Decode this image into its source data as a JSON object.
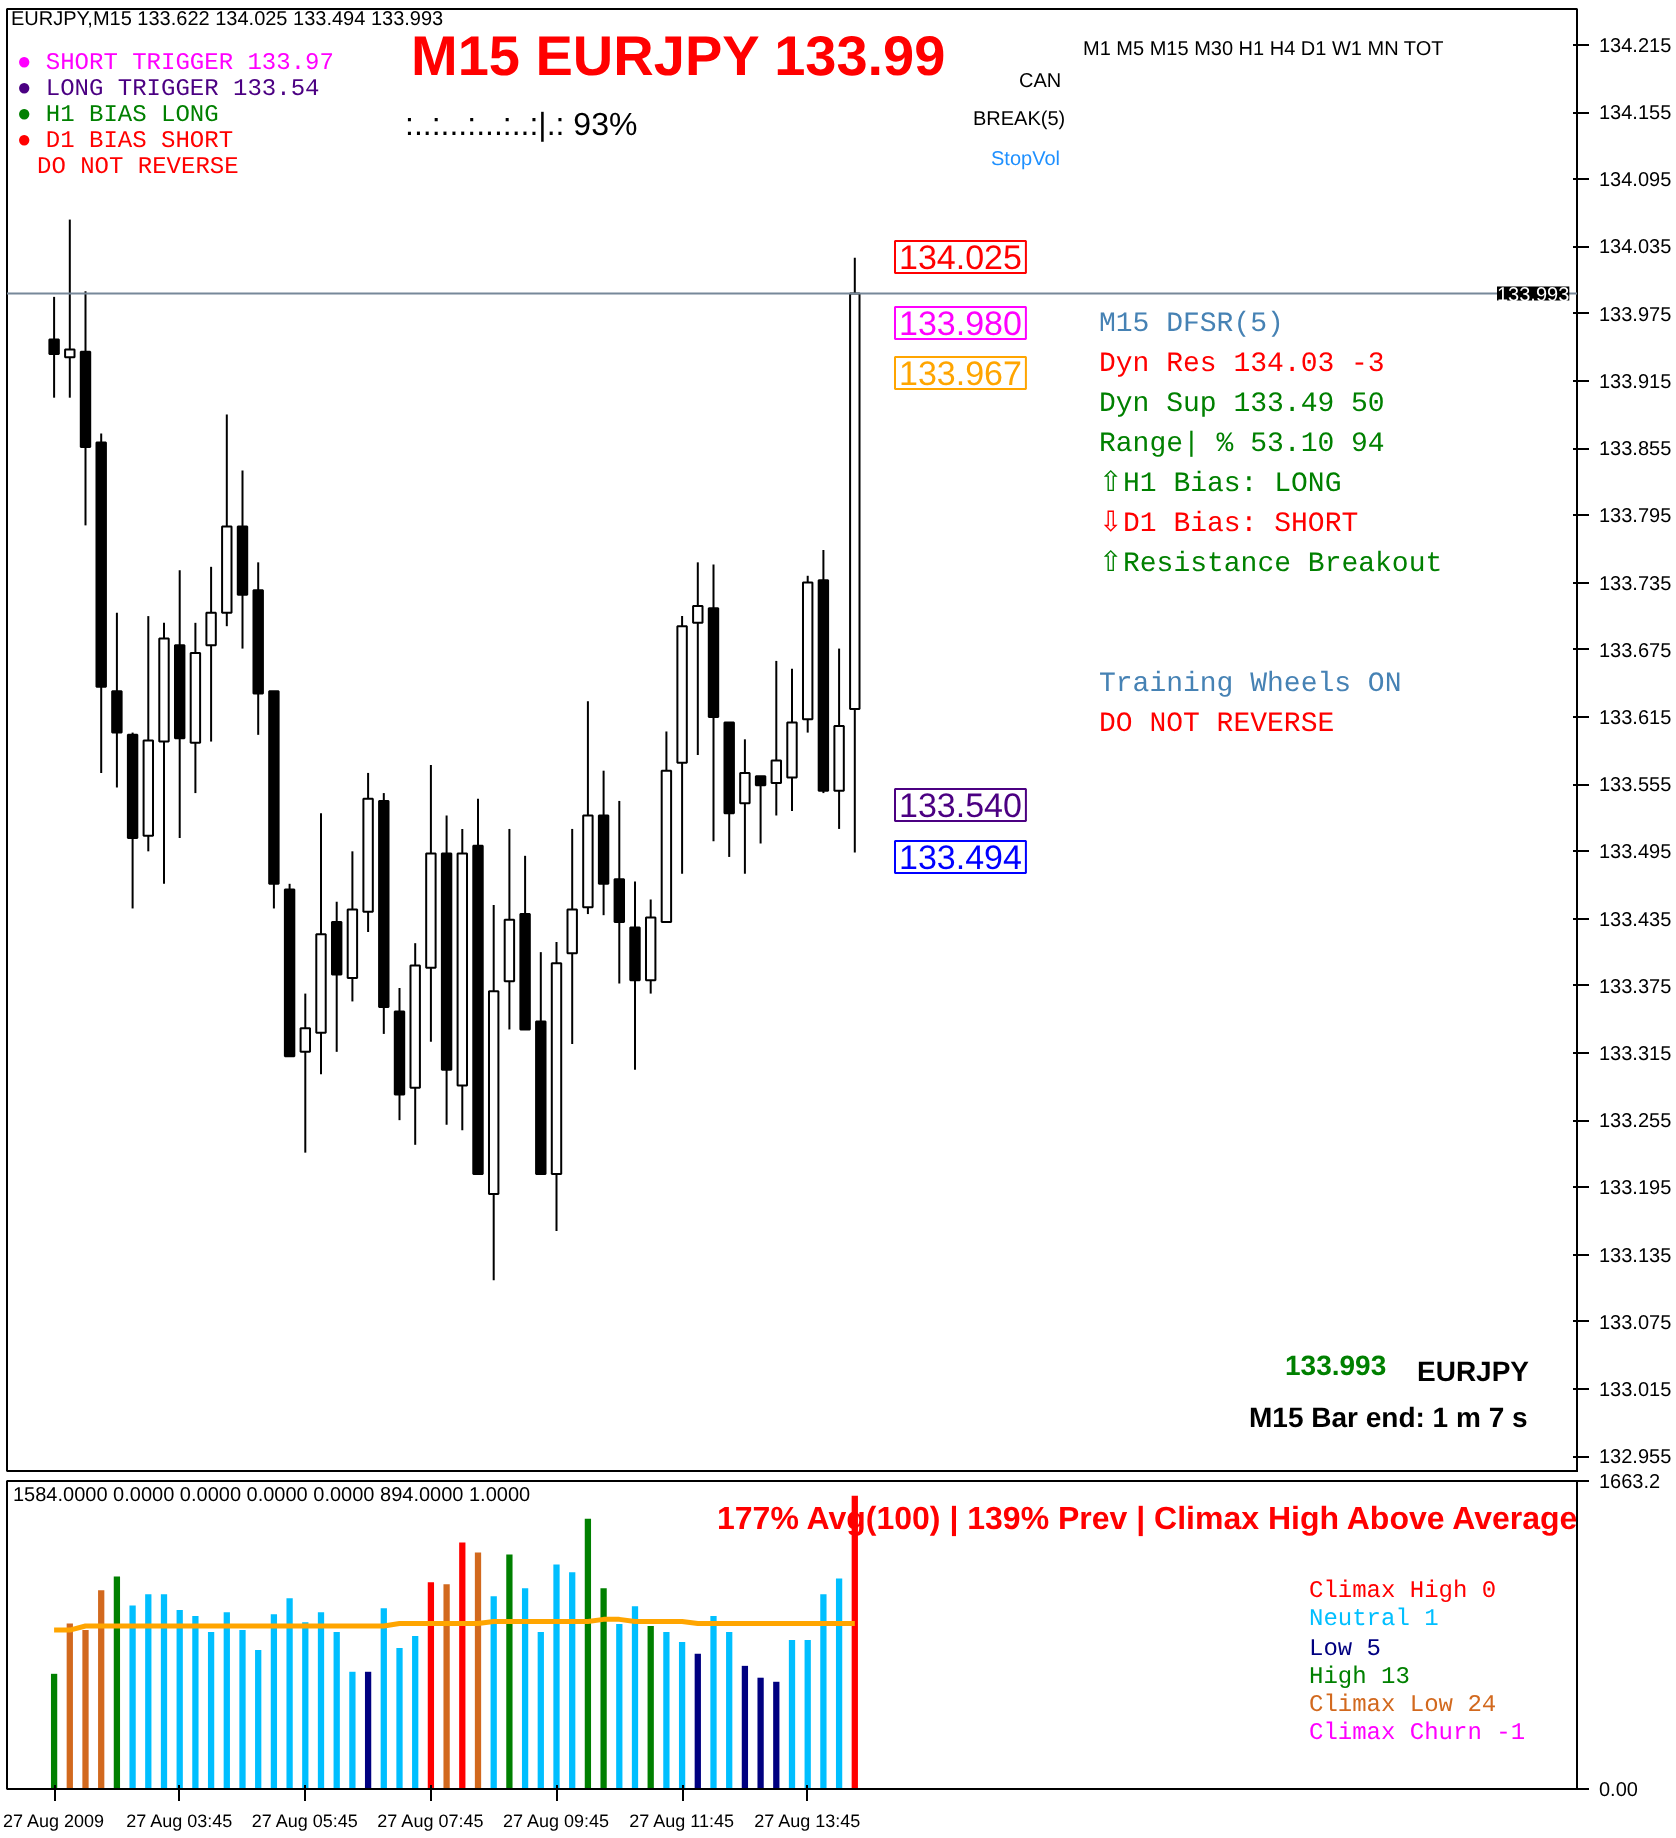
{
  "chart_data": [
    {
      "type": "candlestick",
      "title": "M15 EURJPY 133.99",
      "categories": [
        null,
        null,
        null,
        null,
        null,
        null,
        null,
        null,
        null,
        null,
        null,
        null,
        null,
        null,
        null,
        null,
        null,
        null,
        null,
        null,
        null,
        null,
        null,
        null,
        null,
        null,
        null,
        null,
        null,
        null,
        null,
        null,
        null,
        null,
        null,
        null,
        null,
        null,
        null,
        null,
        null,
        null,
        null,
        null,
        null,
        null,
        null,
        null,
        null,
        null,
        null,
        null,
        null,
        null,
        null,
        null,
        null,
        null,
        null,
        null,
        null,
        null,
        null,
        null,
        null,
        null,
        null,
        null,
        null,
        null,
        null,
        null,
        null,
        null,
        null,
        null,
        null,
        null,
        null,
        null,
        null,
        null,
        null,
        null,
        null,
        null,
        null,
        null,
        null,
        null,
        null,
        null,
        null,
        null,
        null,
        null,
        null,
        null,
        null,
        null
      ],
      "ohlc": [
        [
          133.952,
          133.99,
          133.9,
          133.939
        ],
        [
          133.936,
          134.059,
          133.9,
          133.943
        ],
        [
          133.941,
          133.995,
          133.786,
          133.856
        ],
        [
          133.86,
          133.868,
          133.565,
          133.642
        ],
        [
          133.638,
          133.708,
          133.552,
          133.601
        ],
        [
          133.599,
          133.601,
          133.444,
          133.507
        ],
        [
          133.509,
          133.705,
          133.495,
          133.594
        ],
        [
          133.593,
          133.699,
          133.466,
          133.685
        ],
        [
          133.679,
          133.746,
          133.507,
          133.596
        ],
        [
          133.592,
          133.699,
          133.547,
          133.672
        ],
        [
          133.679,
          133.749,
          133.593,
          133.708
        ],
        [
          133.708,
          133.885,
          133.696,
          133.785
        ],
        [
          133.785,
          133.835,
          133.676,
          133.724
        ],
        [
          133.728,
          133.753,
          133.599,
          133.636
        ],
        [
          133.638,
          133.638,
          133.444,
          133.466
        ],
        [
          133.461,
          133.466,
          133.312,
          133.312
        ],
        [
          133.316,
          133.368,
          133.226,
          133.337
        ],
        [
          133.333,
          133.529,
          133.296,
          133.421
        ],
        [
          133.432,
          133.45,
          133.316,
          133.385
        ],
        [
          133.382,
          133.495,
          133.361,
          133.443
        ],
        [
          133.441,
          133.565,
          133.423,
          133.542
        ],
        [
          133.54,
          133.547,
          133.332,
          133.356
        ],
        [
          133.352,
          133.373,
          133.255,
          133.278
        ],
        [
          133.284,
          133.413,
          133.233,
          133.393
        ],
        [
          133.391,
          133.572,
          133.325,
          133.493
        ],
        [
          133.493,
          133.527,
          133.251,
          133.3
        ],
        [
          133.286,
          133.515,
          133.246,
          133.493
        ],
        [
          133.5,
          133.542,
          133.207,
          133.207
        ],
        [
          133.189,
          133.447,
          133.112,
          133.37
        ],
        [
          133.379,
          133.515,
          133.336,
          133.434
        ],
        [
          133.439,
          133.491,
          133.336,
          133.336
        ],
        [
          133.343,
          133.405,
          133.207,
          133.207
        ],
        [
          133.207,
          133.414,
          133.156,
          133.395
        ],
        [
          133.404,
          133.515,
          133.323,
          133.443
        ],
        [
          133.445,
          133.629,
          133.439,
          133.527
        ],
        [
          133.527,
          133.567,
          133.438,
          133.466
        ],
        [
          133.47,
          133.54,
          133.377,
          133.432
        ],
        [
          133.427,
          133.468,
          133.3,
          133.38
        ],
        [
          133.38,
          133.452,
          133.368,
          133.436
        ],
        [
          133.432,
          133.602,
          133.432,
          133.567
        ],
        [
          133.574,
          133.705,
          133.475,
          133.696
        ],
        [
          133.699,
          133.753,
          133.581,
          133.714
        ],
        [
          133.712,
          133.751,
          133.504,
          133.615
        ],
        [
          133.61,
          133.61,
          133.49,
          133.529
        ],
        [
          133.538,
          133.595,
          133.475,
          133.565
        ],
        [
          133.562,
          133.562,
          133.502,
          133.554
        ],
        [
          133.556,
          133.665,
          133.527,
          133.576
        ],
        [
          133.561,
          133.658,
          133.531,
          133.61
        ],
        [
          133.613,
          133.741,
          133.601,
          133.735
        ],
        [
          133.737,
          133.764,
          133.547,
          133.549
        ],
        [
          133.549,
          133.676,
          133.515,
          133.607
        ],
        [
          133.622,
          134.025,
          133.494,
          133.993
        ],
        null,
        null,
        null,
        null,
        null,
        null,
        null,
        null,
        null,
        null,
        null,
        null,
        null,
        null,
        null,
        null,
        null,
        null,
        null,
        null,
        null,
        null,
        null,
        null,
        null,
        null,
        null,
        null,
        null,
        null,
        null,
        null,
        null,
        null,
        null,
        null,
        null,
        null,
        null,
        null,
        null,
        null,
        null,
        null,
        null,
        null,
        null,
        null
      ],
      "ylim": [
        132.94,
        134.247
      ],
      "yticks": [
        134.215,
        134.155,
        134.095,
        134.035,
        133.975,
        133.915,
        133.855,
        133.795,
        133.735,
        133.675,
        133.615,
        133.555,
        133.495,
        133.435,
        133.375,
        133.315,
        133.255,
        133.195,
        133.135,
        133.075,
        133.015,
        132.955
      ],
      "tick_labels": "y",
      "ref_lines": [
        {
          "axis": "y",
          "value": 133.993,
          "label": "133.993",
          "color": "#778899"
        }
      ],
      "annotations": [
        "EURJPY,M15  133.622 134.025 133.494 133.993",
        "● SHORT TRIGGER 133.97",
        "● LONG TRIGGER  133.54",
        "● H1 BIAS LONG",
        "● D1 BIAS SHORT",
        "DO NOT REVERSE",
        ":..:...:...:..:|.:  93%",
        "M1   M5  M15  M30   H1   H4   D1   W1  MN  TOT",
        "CAN",
        "BREAK(5)",
        "StopVol",
        "M15 DFSR(5)",
        "Dyn Res    134.03    -3",
        "Dyn Sup    133.49    50",
        "Range| %   53.10     94",
        " ⇧H1 Bias: LONG",
        " ⇩D1 Bias: SHORT",
        " ⇧Resistance Breakout",
        "Training Wheels ON",
        "DO NOT REVERSE",
        "133.993",
        "EURJPY",
        "M15 Bar end: 1 m 7 s",
        "134.025",
        "133.980",
        "133.967",
        "133.540",
        "133.494"
      ]
    },
    {
      "type": "bar",
      "categories": [
        "27 Aug 2009",
        null,
        null,
        null,
        null,
        null,
        null,
        null,
        "27 Aug 03:45",
        null,
        null,
        null,
        null,
        null,
        null,
        null,
        "27 Aug 05:45",
        null,
        null,
        null,
        null,
        null,
        null,
        null,
        "27 Aug 07:45",
        null,
        null,
        null,
        null,
        null,
        null,
        null,
        "27 Aug 09:45",
        null,
        null,
        null,
        null,
        null,
        null,
        null,
        "27 Aug 11:45",
        null,
        null,
        null,
        null,
        null,
        null,
        null,
        "27 Aug 13:45",
        null,
        null,
        null,
        null,
        null,
        null,
        null,
        null,
        null,
        null,
        null,
        null,
        null,
        null,
        null,
        null,
        null,
        null,
        null,
        null,
        null,
        null,
        null,
        null,
        null,
        null,
        null,
        null,
        null,
        null,
        null,
        null,
        null,
        null,
        null,
        null,
        null,
        null,
        null,
        null,
        null,
        null,
        null,
        null,
        null,
        null,
        null,
        null,
        null,
        null,
        null
      ],
      "series": [
        {
          "type": "bar",
          "values": [
            622,
            894,
            858,
            1073,
            1148,
            991,
            1052,
            1052,
            966,
            934,
            848,
            955,
            858,
            751,
            944,
            1030,
            901,
            955,
            848,
            633,
            633,
            976,
            762,
            826,
            1116,
            1105,
            1331,
            1277,
            1041,
            1266,
            1084,
            848,
            1212,
            1170,
            1459,
            1084,
            891,
            987,
            880,
            848,
            794,
            730,
            934,
            848,
            665,
            601,
            579,
            805,
            805,
            1052,
            1137,
            1584,
            null,
            null,
            null,
            null,
            null,
            null,
            null,
            null,
            null,
            null,
            null,
            null,
            null,
            null,
            null,
            null,
            null,
            null,
            null,
            null,
            null,
            null,
            null,
            null,
            null,
            null,
            null,
            null,
            null,
            null,
            null,
            null,
            null,
            null,
            null,
            null,
            null,
            null,
            null,
            null,
            null,
            null,
            null,
            null,
            null,
            null,
            null,
            null
          ],
          "colors": [
            "#008000",
            "#d2691e",
            "#d2691e",
            "#d2691e",
            "#008000",
            "#00bfff",
            "#00bfff",
            "#00bfff",
            "#00bfff",
            "#00bfff",
            "#00bfff",
            "#00bfff",
            "#00bfff",
            "#00bfff",
            "#00bfff",
            "#00bfff",
            "#00bfff",
            "#00bfff",
            "#00bfff",
            "#00bfff",
            "#000080",
            "#00bfff",
            "#00bfff",
            "#00bfff",
            "#ff0000",
            "#d2691e",
            "#ff0000",
            "#d2691e",
            "#00bfff",
            "#008000",
            "#00bfff",
            "#00bfff",
            "#00bfff",
            "#00bfff",
            "#008000",
            "#008000",
            "#00bfff",
            "#00bfff",
            "#008000",
            "#00bfff",
            "#00bfff",
            "#000080",
            "#00bfff",
            "#00bfff",
            "#000080",
            "#000080",
            "#000080",
            "#00bfff",
            "#00bfff",
            "#00bfff",
            "#00bfff",
            "#ff0000",
            null,
            null,
            null,
            null,
            null,
            null,
            null,
            null,
            null,
            null,
            null,
            null,
            null,
            null,
            null,
            null,
            null,
            null,
            null,
            null,
            null,
            null,
            null,
            null,
            null,
            null,
            null,
            null,
            null,
            null,
            null,
            null,
            null,
            null,
            null,
            null,
            null,
            null,
            null,
            null,
            null,
            null,
            null,
            null,
            null,
            null,
            null,
            null
          ]
        },
        {
          "type": "line",
          "color": "#ffa500",
          "values": [
            858,
            858,
            880,
            880,
            880,
            880,
            880,
            880,
            880,
            880,
            880,
            880,
            880,
            880,
            880,
            880,
            880,
            880,
            880,
            880,
            880,
            880,
            894,
            894,
            894,
            894,
            894,
            894,
            905,
            905,
            905,
            905,
            905,
            905,
            905,
            916,
            916,
            905,
            905,
            905,
            905,
            894,
            894,
            894,
            894,
            894,
            894,
            894,
            894,
            894,
            894,
            894,
            null,
            null,
            null,
            null,
            null,
            null,
            null,
            null,
            null,
            null,
            null,
            null,
            null,
            null,
            null,
            null,
            null,
            null,
            null,
            null,
            null,
            null,
            null,
            null,
            null,
            null,
            null,
            null,
            null,
            null,
            null,
            null,
            null,
            null,
            null,
            null,
            null,
            null,
            null,
            null,
            null,
            null,
            null,
            null,
            null,
            null,
            null,
            null
          ]
        }
      ],
      "ylim": [
        0,
        1663.2
      ],
      "yticks": [
        {
          "value": 0,
          "label": "0.00"
        },
        1663.2
      ],
      "annotations": [
        "1584.0000 0.0000 0.0000 0.0000 0.0000 894.0000 1.0000",
        "177% Avg(100) | 139% Prev | Climax High Above Average",
        "Climax High      0",
        "Neutral          1",
        "Low              5",
        "High            13",
        "Climax Low      24",
        "Climax Churn    -1"
      ]
    }
  ]
}
